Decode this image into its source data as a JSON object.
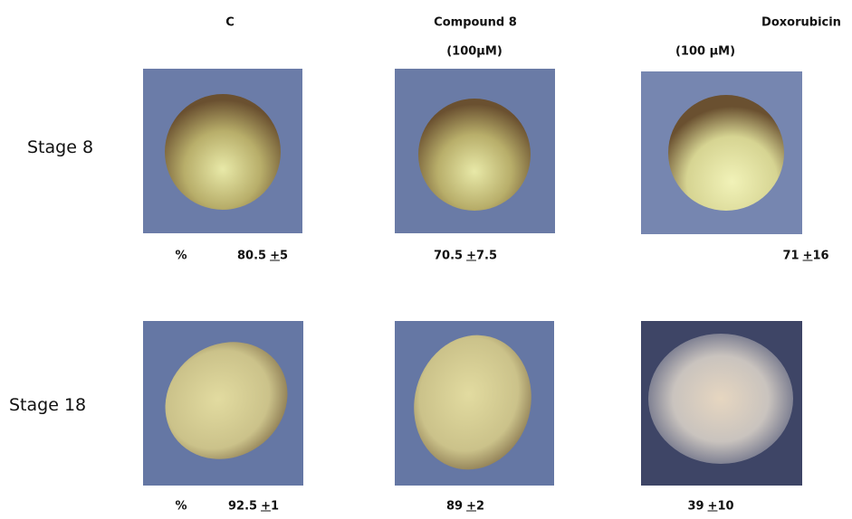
{
  "columns": [
    {
      "title": "C"
    },
    {
      "title": "Compound 8",
      "concentration": "(100µM)"
    },
    {
      "title": "Doxorubicin",
      "concentration": "(100 µM)"
    }
  ],
  "pm_symbol": "+",
  "rows": [
    {
      "label": "Stage 8",
      "percent_symbol": "%",
      "results": [
        {
          "mean": 80.5,
          "sd": 5
        },
        {
          "mean": 70.5,
          "sd": 7.5
        },
        {
          "mean": 71,
          "sd": 16
        }
      ]
    },
    {
      "label": "Stage 18",
      "percent_symbol": "%",
      "results": [
        {
          "mean": 92.5,
          "sd": 1
        },
        {
          "mean": 89,
          "sd": 2
        },
        {
          "mean": 39,
          "sd": 10
        }
      ]
    }
  ]
}
